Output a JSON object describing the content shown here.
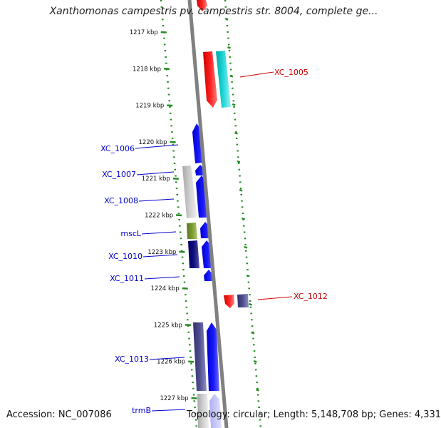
{
  "title": "Xanthomonas campestris pv. campestris str. 8004, complete ge...",
  "footer": {
    "accession": "Accession: NC_007086",
    "summary": "Topology: circular; Length: 5,148,708 bp; Genes: 4,331"
  },
  "colors": {
    "backbone": "#808080",
    "ticks": "#228b22",
    "left_labels": "#0000cc",
    "right_labels": "#cc0000"
  },
  "ticks": [
    {
      "label": "1217 kbp",
      "kbp": 1217
    },
    {
      "label": "1218 kbp",
      "kbp": 1218
    },
    {
      "label": "1219 kbp",
      "kbp": 1219
    },
    {
      "label": "1220 kbp",
      "kbp": 1220
    },
    {
      "label": "1221 kbp",
      "kbp": 1221
    },
    {
      "label": "1222 kbp",
      "kbp": 1222
    },
    {
      "label": "1223 kbp",
      "kbp": 1223
    },
    {
      "label": "1224 kbp",
      "kbp": 1224
    },
    {
      "label": "1225 kbp",
      "kbp": 1225
    },
    {
      "label": "1226 kbp",
      "kbp": 1226
    },
    {
      "label": "1227 kbp",
      "kbp": 1227
    }
  ],
  "gene_labels": [
    {
      "name": "XC_1005",
      "side": "right",
      "color": "#cc0000"
    },
    {
      "name": "XC_1006",
      "side": "left",
      "color": "#0000cc"
    },
    {
      "name": "XC_1007",
      "side": "left",
      "color": "#0000cc"
    },
    {
      "name": "XC_1008",
      "side": "left",
      "color": "#0000cc"
    },
    {
      "name": "mscL",
      "side": "left",
      "color": "#0000cc"
    },
    {
      "name": "XC_1010",
      "side": "left",
      "color": "#0000cc"
    },
    {
      "name": "XC_1011",
      "side": "left",
      "color": "#0000cc"
    },
    {
      "name": "XC_1012",
      "side": "right",
      "color": "#cc0000"
    },
    {
      "name": "XC_1013",
      "side": "left",
      "color": "#0000cc"
    },
    {
      "name": "trmB",
      "side": "left",
      "color": "#0000cc"
    }
  ]
}
